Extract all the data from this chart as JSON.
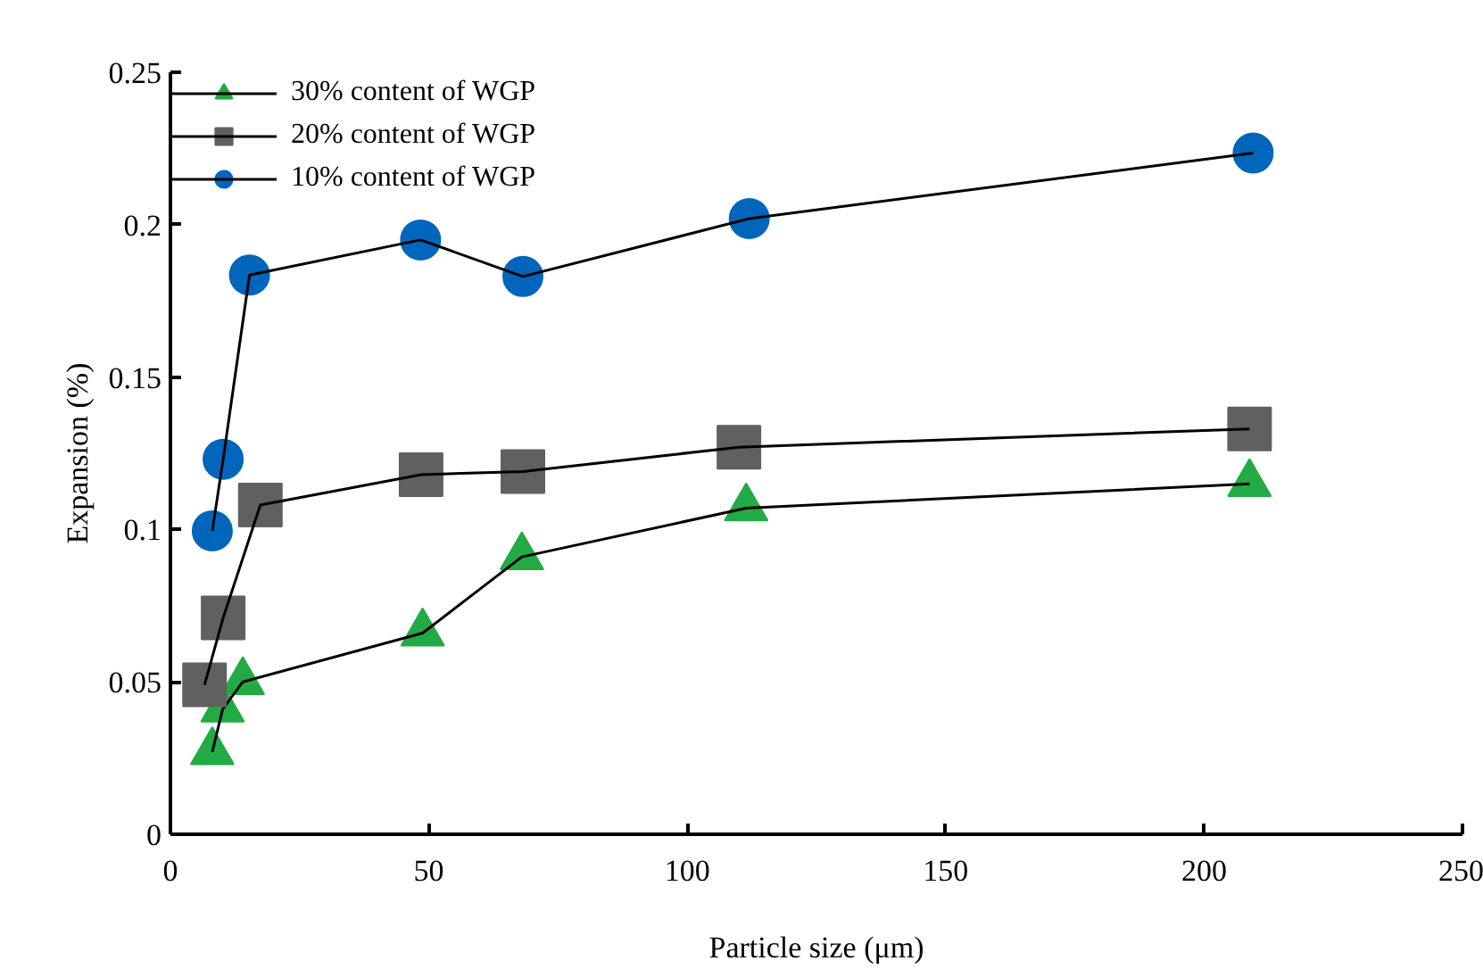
{
  "chart_data": {
    "type": "line",
    "xlabel": "Particle size (μm)",
    "ylabel": "Expansion (%)",
    "xlim": [
      0,
      250
    ],
    "xticks": [
      0,
      50,
      100,
      150,
      200,
      250
    ],
    "ylim": [
      0,
      0.25
    ],
    "yticks": [
      0,
      0.05,
      0.1,
      0.15,
      0.2,
      0.25
    ],
    "grid": false,
    "legend": "top left",
    "series": [
      {
        "name": "30% content of WGP",
        "color": "#22aa44",
        "marker": "triangle",
        "x": [
          8.1,
          10.1,
          14,
          48.8,
          68,
          111.4,
          208.8
        ],
        "values": [
          0.027,
          0.041,
          0.05,
          0.066,
          0.091,
          0.107,
          0.115
        ]
      },
      {
        "name": "20% content of WGP",
        "color": "#606060",
        "marker": "square",
        "x": [
          6.6,
          10.2,
          17.4,
          48.5,
          68.2,
          110,
          208.8
        ],
        "values": [
          0.049,
          0.071,
          0.108,
          0.118,
          0.119,
          0.127,
          0.133
        ]
      },
      {
        "name": "10% content of WGP",
        "color": "#0066bb",
        "marker": "circle",
        "x": [
          8.1,
          10.2,
          15.3,
          48.4,
          68.2,
          112,
          209.5
        ],
        "values": [
          0.0995,
          0.123,
          0.1835,
          0.195,
          0.183,
          0.202,
          0.2235
        ]
      }
    ]
  }
}
